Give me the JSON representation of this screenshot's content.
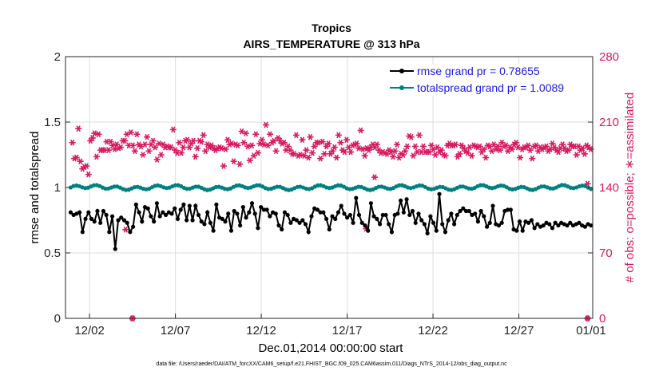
{
  "chart_data": {
    "type": "line",
    "title": "Tropics",
    "subtitle": "AIRS_TEMPERATURE @ 313 hPa",
    "xlabel": "Dec.01,2014 00:00:00 start",
    "ylabel": "rmse and totalspread",
    "y2label": "# of obs: o=possible; ∗=assimilated",
    "footer": "data file: /Users/raeder/DAI/ATM_forcXX/CAM6_setup/f.e21.FHIST_BGC.f09_025.CAM6assim.011/Diags_NTrS_2014-12/obs_diag_output.nc",
    "xlim": [
      0.6,
      31.3
    ],
    "ylim": [
      0,
      2
    ],
    "y2lim": [
      0,
      280
    ],
    "x_ticks": [
      2,
      7,
      12,
      17,
      22,
      27,
      32
    ],
    "x_tick_labels": [
      "12/02",
      "12/07",
      "12/12",
      "12/17",
      "12/22",
      "12/27",
      "01/01"
    ],
    "y_ticks": [
      0,
      0.5,
      1,
      1.5,
      2
    ],
    "y_tick_labels": [
      "0",
      "0.5",
      "1",
      "1.5",
      "2"
    ],
    "y2_ticks": [
      0,
      70,
      140,
      210,
      280
    ],
    "y2_tick_labels": [
      "0",
      "70",
      "140",
      "210",
      "280"
    ],
    "colors": {
      "rmse": "#000000",
      "spread": "#008080",
      "obs": "#d81b60",
      "legend_text": "#1a1ae6"
    },
    "series": [
      {
        "name": "rmse grand pr = 0.78655",
        "values": [
          0.81,
          0.79,
          0.8,
          0.81,
          0.66,
          0.76,
          0.81,
          0.76,
          0.74,
          0.82,
          0.73,
          0.82,
          0.79,
          0.66,
          0.78,
          0.53,
          0.75,
          0.77,
          0.75,
          0.73,
          0.66,
          0.7,
          0.87,
          0.81,
          0.74,
          0.85,
          0.84,
          0.78,
          0.74,
          0.88,
          0.78,
          0.81,
          0.79,
          0.81,
          0.8,
          0.84,
          0.76,
          0.83,
          0.87,
          0.75,
          0.86,
          0.75,
          0.86,
          0.79,
          0.74,
          0.72,
          0.81,
          0.73,
          0.67,
          0.87,
          0.77,
          0.76,
          0.74,
          0.8,
          0.67,
          0.82,
          0.8,
          0.71,
          0.85,
          0.77,
          0.81,
          0.88,
          0.8,
          0.69,
          0.85,
          0.83,
          0.83,
          0.78,
          0.81,
          0.8,
          0.71,
          0.68,
          0.81,
          0.79,
          0.73,
          0.76,
          0.75,
          0.73,
          0.75,
          0.72,
          0.66,
          0.78,
          0.84,
          0.83,
          0.81,
          0.81,
          0.76,
          0.68,
          0.78,
          0.76,
          0.81,
          0.86,
          0.8,
          0.77,
          0.79,
          0.73,
          0.92,
          0.79,
          0.73,
          0.71,
          0.67,
          0.88,
          0.78,
          0.76,
          0.72,
          0.79,
          0.79,
          0.72,
          0.66,
          0.79,
          0.8,
          0.9,
          0.81,
          0.91,
          0.79,
          0.82,
          0.73,
          0.8,
          0.75,
          0.72,
          0.65,
          0.78,
          0.73,
          0.67,
          0.95,
          0.72,
          0.66,
          0.75,
          0.8,
          0.72,
          0.79,
          0.82,
          0.84,
          0.82,
          0.82,
          0.79,
          0.8,
          0.74,
          0.82,
          0.78,
          0.7,
          0.73,
          0.86,
          0.72,
          0.71,
          0.73,
          0.82,
          0.83,
          0.83,
          0.68,
          0.67,
          0.74,
          0.67,
          0.74,
          0.73,
          0.75,
          0.69,
          0.72,
          0.7,
          0.71,
          0.73,
          0.72,
          0.69,
          0.73,
          0.71,
          0.73,
          0.72,
          0.71,
          0.73,
          0.71,
          0.72,
          0.73,
          0.71,
          0.7,
          0.72,
          0.71
        ]
      },
      {
        "name": "totalspread grand pr = 1.0089",
        "values": "auto",
        "level": 1.0089
      }
    ],
    "obs_assimilated": [
      188,
      180,
      171,
      171,
      172,
      175,
      203,
      173,
      168,
      173,
      160,
      171,
      162,
      184,
      163,
      186,
      154,
      174,
      190,
      169,
      193,
      186,
      198,
      178,
      173,
      213,
      197,
      181,
      180,
      203,
      180,
      181,
      180,
      178,
      189,
      205,
      180,
      181,
      189,
      182,
      185,
      180,
      181,
      186,
      186,
      182,
      182,
      185,
      183,
      180,
      190,
      181,
      190,
      180,
      197,
      188,
      185,
      187,
      199,
      183,
      185,
      181,
      179,
      180,
      197,
      179,
      186,
      185,
      184,
      182,
      175,
      186,
      186,
      195,
      194,
      181,
      179,
      186,
      186,
      160,
      190,
      181,
      183,
      175,
      170,
      191,
      187,
      178,
      175,
      193,
      186,
      174,
      183,
      178,
      184,
      184,
      183,
      188,
      183,
      187,
      202,
      183,
      180,
      179,
      177,
      185,
      188,
      178,
      177,
      178,
      183,
      183,
      190,
      182,
      191,
      197,
      183,
      186,
      187,
      186,
      190,
      192,
      173,
      176,
      182,
      170,
      190,
      183,
      189,
      188,
      196,
      166,
      179,
      191,
      186,
      189,
      183,
      176,
      185,
      183,
      182,
      173,
      180,
      183,
      182,
      175,
      183,
      173,
      182,
      189,
      163,
      165,
      181,
      162,
      191,
      197,
      186,
      205,
      187,
      193,
      168,
      180,
      186,
      181,
      185,
      196,
      165,
      184,
      200,
      187,
      188,
      190,
      198,
      175,
      184,
      192,
      169,
      187,
      185,
      188,
      174,
      179,
      197,
      185,
      177,
      160,
      187,
      189,
      191,
      183,
      186,
      193,
      207,
      162,
      185,
      188,
      197,
      175,
      188,
      181,
      190,
      183,
      179,
      186,
      193,
      163,
      190,
      182,
      187,
      185,
      188,
      186,
      180,
      177,
      184,
      180,
      180,
      178,
      176,
      168,
      176,
      188,
      196,
      183,
      174,
      197,
      175,
      180,
      191,
      169,
      174,
      186,
      180,
      183,
      172,
      175,
      194,
      190,
      177,
      176,
      184,
      170,
      188,
      177,
      188,
      208,
      171,
      167,
      189,
      175,
      176,
      187,
      184,
      201,
      187,
      190,
      176,
      183,
      179,
      186,
      183,
      192,
      172,
      178,
      196,
      184,
      188,
      165,
      180,
      173,
      178,
      190,
      191,
      191,
      183,
      185,
      178,
      172,
      185,
      186,
      186,
      178,
      187,
      192,
      182,
      182,
      201,
      179,
      181,
      189,
      174,
      175,
      182,
      175,
      180,
      185,
      183,
      175,
      186,
      176,
      183,
      196,
      186,
      183,
      180,
      190,
      177,
      178,
      178,
      185,
      177,
      192,
      176,
      181,
      180,
      171,
      178,
      187,
      173,
      193,
      179,
      170,
      186,
      171,
      172,
      190,
      176,
      183,
      175,
      174,
      179,
      183,
      184,
      181,
      195,
      179,
      194,
      179,
      174,
      180,
      184,
      176,
      178,
      183,
      196,
      181,
      178,
      180,
      184,
      191,
      178,
      183,
      178,
      184,
      178,
      185,
      185,
      188,
      181,
      177,
      175,
      178,
      183,
      177,
      178,
      190,
      180,
      180,
      175,
      171,
      174,
      183,
      185,
      174,
      187,
      181,
      185,
      180,
      185,
      177,
      186,
      175,
      173,
      177,
      176,
      181,
      185,
      182,
      182,
      173,
      179,
      179,
      177,
      176,
      183,
      180,
      174,
      185,
      185,
      175,
      184,
      187,
      183,
      174,
      184,
      180,
      178,
      176,
      181,
      177,
      172,
      184,
      185,
      183,
      184,
      181,
      179,
      188,
      186,
      177,
      181,
      181,
      184,
      176,
      180,
      177,
      188,
      183,
      184,
      175,
      185,
      180,
      179,
      171,
      183,
      178,
      181,
      181,
      186,
      180,
      188,
      179,
      183,
      176,
      172,
      180,
      181,
      177,
      183,
      176,
      183,
      181,
      185,
      178,
      180,
      180,
      171,
      184,
      184,
      182,
      185,
      183,
      179,
      178,
      183,
      184,
      181,
      176,
      183,
      179,
      184,
      184,
      179,
      180,
      181,
      178,
      187,
      180,
      183,
      184,
      180,
      172,
      178,
      181,
      182,
      178,
      186,
      178,
      182,
      186,
      179,
      182,
      180,
      178,
      186,
      181,
      184,
      179,
      184,
      179,
      175,
      181,
      184,
      182,
      180,
      179,
      182,
      181,
      176,
      183,
      185,
      180,
      183,
      177,
      181,
      184
    ],
    "obs_outliers": [
      {
        "x": 4.5,
        "value": 0
      },
      {
        "x": 31.0,
        "value": 0
      }
    ]
  }
}
